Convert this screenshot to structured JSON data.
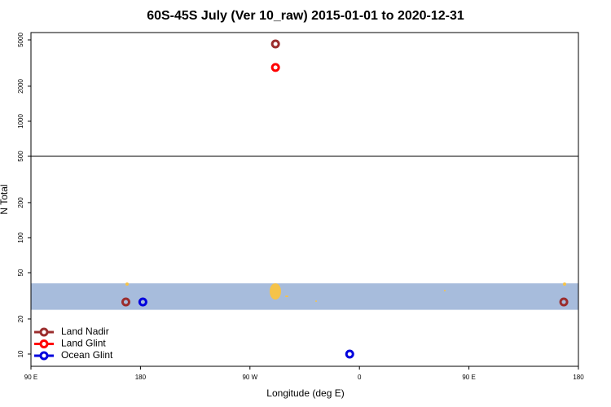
{
  "chart_data": {
    "type": "scatter",
    "title": "60S-45S July (Ver 10_raw)   2015-01-01 to 2020-12-31",
    "xlabel": "Longitude (deg E)",
    "ylabel": "N Total",
    "xlim": [
      90,
      540
    ],
    "ylim": [
      7.85,
      5780
    ],
    "log_y": true,
    "xticks": [
      {
        "value": 90,
        "label": "90 E"
      },
      180,
      {
        "value": 270,
        "label": "90 W"
      },
      {
        "value": 360,
        "label": "0"
      },
      {
        "value": 450,
        "label": "90 E"
      },
      {
        "value": 540,
        "label": "180"
      }
    ],
    "yticks": [
      10,
      20,
      50,
      100,
      200,
      500,
      1000,
      2000,
      5000
    ],
    "hline": 500,
    "band": [
      24,
      40.5
    ],
    "band_color": "#a7bcdc",
    "legend": "lower left",
    "series": [
      {
        "name": "Land Nadir",
        "color": "#9b2d2d",
        "x": [
          291,
          168,
          528
        ],
        "values": [
          4610,
          28,
          28
        ]
      },
      {
        "name": "Land Glint",
        "color": "#ff0000",
        "x": [
          291
        ],
        "values": [
          2900
        ]
      },
      {
        "name": "Ocean Glint",
        "color": "#0000dd",
        "x": [
          182,
          352
        ],
        "values": [
          28,
          10
        ]
      }
    ]
  }
}
